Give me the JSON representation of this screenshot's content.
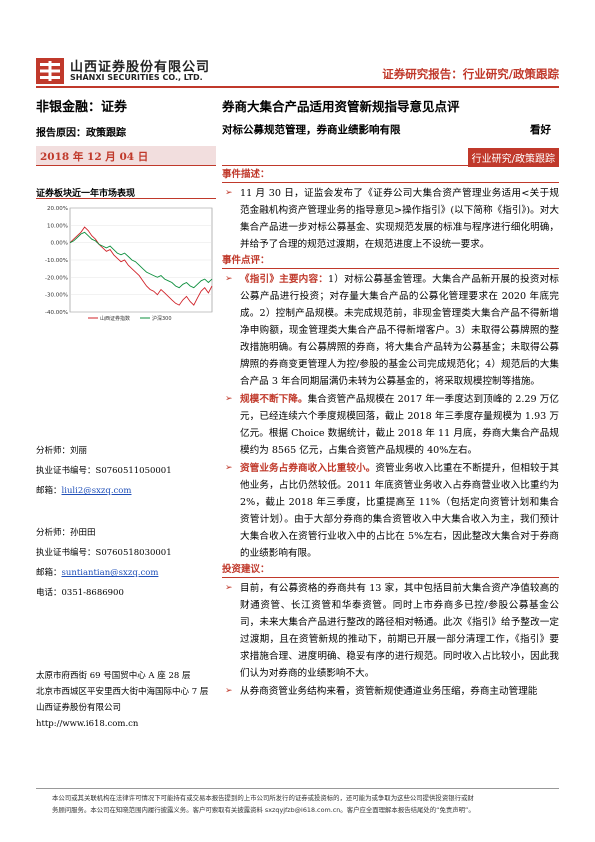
{
  "header": {
    "logo_cn": "山西证券股份有限公司",
    "logo_en": "SHANXI SECURITIES CO., LTD.",
    "report_type": "证券研究报告：行业研究/政策跟踪"
  },
  "sector": "非银金融：证券",
  "title": "券商大集合产品适用资管新规指导意见点评",
  "reason": "报告原因：政策跟踪",
  "subtitle": "对标公募规范管理，券商业绩影响有限",
  "rating": "看好",
  "date": "2018 年 12 月 04 日",
  "category": "行业研究/政策跟踪",
  "chart": {
    "title": "证券板块近一年市场表现",
    "legend": [
      "山西证券指数",
      "沪深300"
    ],
    "colors": {
      "sector": "#d0232a",
      "index": "#0e8f3e"
    }
  },
  "chart_data": {
    "type": "line",
    "title": "证券板块近一年市场表现",
    "ylim": [
      -40,
      20
    ],
    "y_ticks": [
      "20.00%",
      "10.00%",
      "0.00%",
      "-10.00%",
      "-20.00%",
      "-30.00%",
      "-40.00%"
    ],
    "x": [
      0,
      1,
      2,
      3,
      4,
      5,
      6,
      7,
      8,
      9,
      10,
      11,
      12,
      13,
      14,
      15,
      16,
      17,
      18,
      19,
      20,
      21,
      22,
      23,
      24,
      25,
      26,
      27,
      28,
      29,
      30,
      31,
      32,
      33,
      34,
      35,
      36,
      37,
      38,
      39
    ],
    "series": [
      {
        "name": "山西证券指数",
        "values": [
          0,
          2,
          4,
          6,
          9,
          7,
          4,
          2,
          -1,
          -3,
          -5,
          -4,
          -7,
          -9,
          -11,
          -10,
          -13,
          -15,
          -17,
          -19,
          -22,
          -25,
          -27,
          -28,
          -30,
          -27,
          -29,
          -31,
          -33,
          -35,
          -36,
          -33,
          -31,
          -34,
          -36,
          -32,
          -28,
          -26,
          -29,
          -25
        ]
      },
      {
        "name": "沪深300",
        "values": [
          0,
          1,
          3,
          5,
          6,
          4,
          2,
          1,
          -1,
          -2,
          -3,
          -2,
          -4,
          -6,
          -7,
          -6,
          -8,
          -10,
          -11,
          -13,
          -15,
          -17,
          -18,
          -19,
          -20,
          -19,
          -21,
          -22,
          -23,
          -25,
          -26,
          -24,
          -23,
          -25,
          -26,
          -24,
          -22,
          -21,
          -23,
          -21
        ]
      }
    ]
  },
  "analysts": [
    {
      "name_line": "分析师：刘丽",
      "cert_line": "执业证书编号：S0760511050001",
      "email_label": "邮箱：",
      "email": "liuli2@sxzq.com",
      "phone_line": ""
    },
    {
      "name_line": "分析师：孙田田",
      "cert_line": "执业证书编号：S0760518030001",
      "email_label": "邮箱：",
      "email": "suntiantian@sxzq.com",
      "phone_line": "电话：0351-8686900"
    }
  ],
  "address": {
    "line1": "太原市府西街 69 号国贸中心 A 座 28 层",
    "line2": "北京市西城区平安里西大街中海国际中心 7 层",
    "line3": "山西证券股份有限公司",
    "line4": "http://www.i618.com.cn"
  },
  "sections": {
    "event_head": "事件描述：",
    "event_text": "11 月 30 日，证监会发布了《证券公司大集合资产管理业务适用<关于规范金融机构资产管理业务的指导意见>操作指引》(以下简称《指引》)。对大集合产品进一步对标公募基金、实现规范发展的标准与程序进行细化明确，并给予了合理的规范过渡期，在规范进度上不设统一要求。",
    "comment_head": "事件点评：",
    "p1_hl": "《指引》主要内容：",
    "p1_text": "1）对标公募基金管理。大集合产品新开展的投资对标公募产品进行投资；对存量大集合产品的公募化管理要求在 2020 年底完成。2）控制产品规模。未完成规范前，非现金管理类大集合产品不得新增净申购额，现金管理类大集合产品不得新增客户。3）未取得公募牌照的整改措施明确。有公募牌照的券商，将大集合产品转为公募基金；未取得公募牌照的券商变更管理人为控/参股的基金公司完成规范化；4）规范后的大集合产品 3 年合同期届满仍未转为公募基金的，将采取规模控制等措施。",
    "p2_hl": "规模不断下降。",
    "p2_text": "集合资管产品规模在 2017 年一季度达到顶峰的 2.29 万亿元，已经连续六个季度规模回落，截止 2018 年三季度存量规模为 1.93 万亿元。根据 Choice 数据统计，截止 2018 年 11 月底，券商大集合产品规模约为 8565 亿元，占集合资管产品规模的 40%左右。",
    "p3_hl": "资管业务占券商收入比重较小。",
    "p3_text": "资管业务收入比重在不断提升，但相较于其他业务，占比仍然较低。2011 年底资管业务收入占券商营业收入比重约为 2%，截止 2018 年三季度，比重提高至 11%（包括定向资管计划和集合资管计划）。由于大部分券商的集合资管收入中大集合收入为主，我们预计大集合收入在资管行业收入中的占比在 5%左右，因此整改大集合对于券商的业绩影响有限。",
    "advice_head": "投资建议：",
    "p4_text": "目前，有公募资格的券商共有 13 家，其中包括目前大集合资产净值较高的财通资管、长江资管和华泰资管。同时上市券商多已控/参股公募基金公司，未来大集合产品进行整改的路径相对畅通。此次《指引》给予整改一定过渡期，且在资管新规的推动下，前期已开展一部分清理工作，《指引》要求措施合理、进度明确、稳妥有序的进行规范。同时收入占比较小，因此我们认为对券商的业绩影响不大。",
    "p5_text": "从券商资管业务结构来看，资管新规使通道业务压缩，券商主动管理能"
  },
  "footer": {
    "line1": "本公司或其关联机构在法律许可情况下可能持有或交易本报告提到的上市公司所发行的证券或投资标的，还可能为或争取为这些公司提供投资银行或财",
    "line2": "务顾问服务。本公司在知晓范围内履行披露义务。客户可索取有关披露资料 sxzqyjfzb@i618.com.cn。客户应全面理解本报告结尾处的“免责声明”。"
  }
}
